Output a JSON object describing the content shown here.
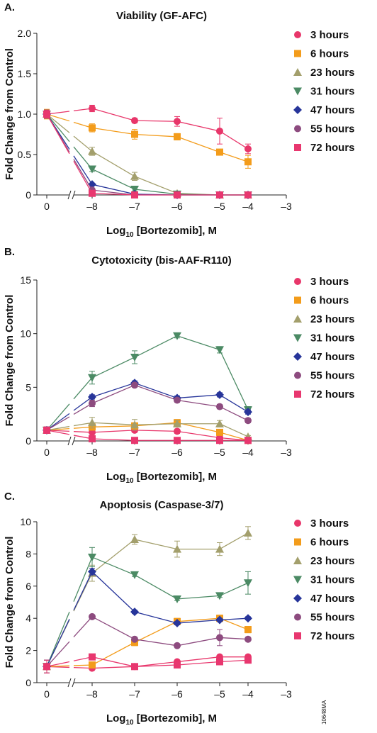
{
  "figure_id": "10648MA",
  "x_axis": {
    "label_prefix": "Log",
    "label_sub": "10",
    "label_suffix": " [Bortezomib], M",
    "tick_values": [
      0,
      -8,
      -7,
      -6,
      -5,
      -4,
      -3
    ],
    "tick_labels": [
      "0",
      "–8",
      "–7",
      "–6",
      "–5",
      "–4",
      "–3"
    ]
  },
  "series_style": [
    {
      "name": "3 hours",
      "color": "#e8366a",
      "marker": "circle"
    },
    {
      "name": "6 hours",
      "color": "#f39c1b",
      "marker": "square"
    },
    {
      "name": "23 hours",
      "color": "#a39f6c",
      "marker": "triangle-up"
    },
    {
      "name": "31 hours",
      "color": "#4b8a64",
      "marker": "triangle-down"
    },
    {
      "name": "47 hours",
      "color": "#27359a",
      "marker": "diamond"
    },
    {
      "name": "55 hours",
      "color": "#8d4b7f",
      "marker": "circle"
    },
    {
      "name": "72 hours",
      "color": "#e8376f",
      "marker": "square"
    }
  ],
  "chart_data": [
    {
      "type": "line",
      "panel": "A.",
      "title": "Viability (GF-AFC)",
      "ylabel": "Fold Change from Control",
      "xlabel": "Log10 [Bortezomib], M",
      "x": [
        0,
        -8,
        -7,
        -6,
        -5,
        -4
      ],
      "xlim": [
        0,
        -3
      ],
      "ylim": [
        0,
        2.0
      ],
      "yticks": [
        0,
        0.5,
        1.0,
        1.5,
        2.0
      ],
      "ytick_labels": [
        "0",
        "0.5",
        "1.0",
        "1.5",
        "2.0"
      ],
      "axis_break": true,
      "grid": false,
      "legend": "right",
      "series": [
        {
          "name": "3 hours",
          "values": [
            1.0,
            1.07,
            0.92,
            0.91,
            0.79,
            0.57
          ],
          "errors": [
            0.05,
            0.04,
            0.03,
            0.06,
            0.16,
            0.06
          ]
        },
        {
          "name": "6 hours",
          "values": [
            1.0,
            0.83,
            0.75,
            0.72,
            0.53,
            0.41
          ],
          "errors": [
            0.06,
            0.05,
            0.06,
            0.04,
            0.03,
            0.08
          ]
        },
        {
          "name": "23 hours",
          "values": [
            1.0,
            0.54,
            0.23,
            0.02,
            0.0,
            0.0
          ],
          "errors": [
            0.05,
            0.05,
            0.05,
            0.01,
            0.0,
            0.0
          ]
        },
        {
          "name": "31 hours",
          "values": [
            1.0,
            0.32,
            0.07,
            0.01,
            0.0,
            0.0
          ],
          "errors": [
            0.05,
            0.03,
            0.02,
            0.0,
            0.0,
            0.0
          ]
        },
        {
          "name": "47 hours",
          "values": [
            1.0,
            0.13,
            0.01,
            0.0,
            0.0,
            0.0
          ],
          "errors": [
            0.05,
            0.01,
            0.0,
            0.0,
            0.0,
            0.0
          ]
        },
        {
          "name": "55 hours",
          "values": [
            1.0,
            0.06,
            0.0,
            0.0,
            0.0,
            0.0
          ],
          "errors": [
            0.05,
            0.01,
            0.0,
            0.0,
            0.0,
            0.0
          ]
        },
        {
          "name": "72 hours",
          "values": [
            1.0,
            0.02,
            0.0,
            0.0,
            0.0,
            0.0
          ],
          "errors": [
            0.05,
            0.01,
            0.0,
            0.0,
            0.0,
            0.0
          ]
        }
      ]
    },
    {
      "type": "line",
      "panel": "B.",
      "title": "Cytotoxicity (bis-AAF-R110)",
      "ylabel": "Fold Change from Control",
      "xlabel": "Log10 [Bortezomib], M",
      "x": [
        0,
        -8,
        -7,
        -6,
        -5,
        -4
      ],
      "xlim": [
        0,
        -3
      ],
      "ylim": [
        0,
        15
      ],
      "yticks": [
        0,
        5,
        10,
        15
      ],
      "ytick_labels": [
        "0",
        "5",
        "10",
        "15"
      ],
      "axis_break": true,
      "grid": false,
      "legend": "right",
      "series": [
        {
          "name": "3 hours",
          "values": [
            1.0,
            0.8,
            1.0,
            0.9,
            0.3,
            0.05
          ],
          "errors": [
            0.3,
            0.3,
            0.2,
            0.2,
            0.1,
            0.05
          ]
        },
        {
          "name": "6 hours",
          "values": [
            1.0,
            1.3,
            1.4,
            1.7,
            0.8,
            0.05
          ],
          "errors": [
            0.3,
            0.3,
            0.3,
            0.3,
            0.2,
            0.05
          ]
        },
        {
          "name": "23 hours",
          "values": [
            1.0,
            1.7,
            1.5,
            1.6,
            1.6,
            0.4
          ],
          "errors": [
            0.3,
            0.5,
            0.5,
            0.3,
            0.3,
            0.1
          ]
        },
        {
          "name": "31 hours",
          "values": [
            1.0,
            5.9,
            7.8,
            9.8,
            8.5,
            2.9
          ],
          "errors": [
            0.3,
            0.6,
            0.6,
            0.2,
            0.3,
            0.3
          ]
        },
        {
          "name": "47 hours",
          "values": [
            1.0,
            4.1,
            5.4,
            4.0,
            4.3,
            2.7
          ],
          "errors": [
            0.3,
            0.2,
            0.2,
            0.2,
            0.2,
            0.2
          ]
        },
        {
          "name": "55 hours",
          "values": [
            1.0,
            3.5,
            5.2,
            3.8,
            3.2,
            1.9
          ],
          "errors": [
            0.3,
            0.3,
            0.2,
            0.2,
            0.2,
            0.2
          ]
        },
        {
          "name": "72 hours",
          "values": [
            1.0,
            0.2,
            0.05,
            0.05,
            0.05,
            0.05
          ],
          "errors": [
            0.3,
            0.1,
            0.05,
            0.05,
            0.05,
            0.05
          ]
        }
      ]
    },
    {
      "type": "line",
      "panel": "C.",
      "title": "Apoptosis (Caspase-3/7)",
      "ylabel": "Fold Change from Control",
      "xlabel": "Log10 [Bortezomib], M",
      "x": [
        0,
        -8,
        -7,
        -6,
        -5,
        -4
      ],
      "xlim": [
        0,
        -3
      ],
      "ylim": [
        0,
        10
      ],
      "yticks": [
        0,
        2,
        4,
        6,
        8,
        10
      ],
      "ytick_labels": [
        "0",
        "2",
        "4",
        "6",
        "8",
        "10"
      ],
      "axis_break": true,
      "grid": false,
      "legend": "right",
      "series": [
        {
          "name": "3 hours",
          "values": [
            1.0,
            0.9,
            1.0,
            1.3,
            1.6,
            1.6
          ],
          "errors": [
            0.4,
            0.1,
            0.1,
            0.1,
            0.1,
            0.1
          ]
        },
        {
          "name": "6 hours",
          "values": [
            1.0,
            1.1,
            2.5,
            3.8,
            4.0,
            3.3
          ],
          "errors": [
            0.4,
            0.1,
            0.2,
            0.2,
            0.2,
            0.2
          ]
        },
        {
          "name": "23 hours",
          "values": [
            1.0,
            6.8,
            8.9,
            8.3,
            8.3,
            9.3
          ],
          "errors": [
            0.4,
            0.5,
            0.3,
            0.5,
            0.4,
            0.4
          ]
        },
        {
          "name": "31 hours",
          "values": [
            1.0,
            7.8,
            6.7,
            5.2,
            5.4,
            6.2
          ],
          "errors": [
            0.4,
            0.6,
            0.1,
            0.1,
            0.1,
            0.7
          ]
        },
        {
          "name": "47 hours",
          "values": [
            1.0,
            6.9,
            4.4,
            3.7,
            3.9,
            4.0
          ],
          "errors": [
            0.4,
            0.2,
            0.1,
            0.1,
            0.1,
            0.1
          ]
        },
        {
          "name": "55 hours",
          "values": [
            1.0,
            4.1,
            2.7,
            2.3,
            2.8,
            2.7
          ],
          "errors": [
            0.4,
            0.1,
            0.1,
            0.1,
            0.5,
            0.1
          ]
        },
        {
          "name": "72 hours",
          "values": [
            1.0,
            1.6,
            1.0,
            1.1,
            1.3,
            1.4
          ],
          "errors": [
            0.4,
            0.1,
            0.1,
            0.1,
            0.1,
            0.1
          ]
        }
      ]
    }
  ]
}
